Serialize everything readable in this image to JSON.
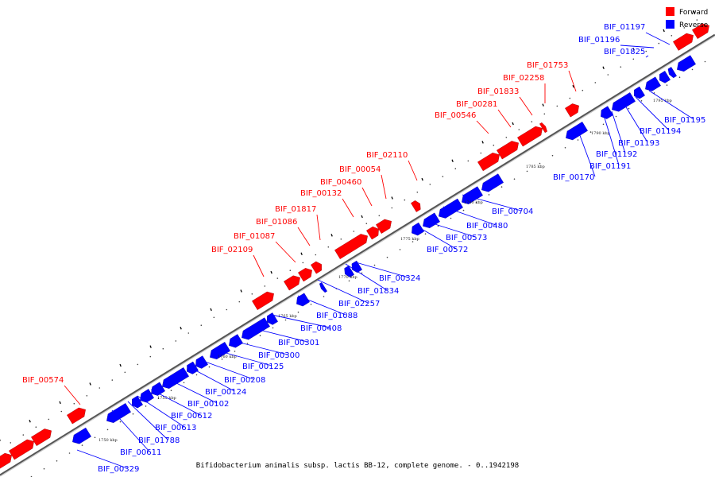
{
  "colors": {
    "forward": "#ff0000",
    "reverse": "#0000ff",
    "backbone": "#777777"
  },
  "legend": {
    "forward_label": "Forward",
    "reverse_label": "Reverse"
  },
  "caption": "Bifidobacterium animalis subsp. lactis BB-12, complete genome. - 0..1942198",
  "scale_labels": [
    "1750 kbp",
    "1755 kbp",
    "1760 kbp",
    "1765 kbp",
    "1770 kbp",
    "1775 kbp",
    "1780 kbp",
    "1785 kbp",
    "1790 kbp",
    "1795 kbp"
  ],
  "forward_genes": [
    "BIF_00574",
    "BIF_02109",
    "BIF_01087",
    "BIF_01086",
    "BIF_01817",
    "BIF_00132",
    "BIF_00460",
    "BIF_00054",
    "BIF_02110",
    "BIF_00546",
    "BIF_00281",
    "BIF_01833",
    "BIF_02258",
    "BIF_01753"
  ],
  "reverse_genes": [
    "BIF_00329",
    "BIF_00611",
    "BIF_01788",
    "BIF_00613",
    "BIF_00612",
    "BIF_00102",
    "BIF_00124",
    "BIF_00208",
    "BIF_00125",
    "BIF_00300",
    "BIF_00301",
    "BIF_00408",
    "BIF_01088",
    "BIF_02257",
    "BIF_01834",
    "BIF_00324",
    "BIF_00572",
    "BIF_00573",
    "BIF_00480",
    "BIF_00704",
    "BIF_00170",
    "BIF_01191",
    "BIF_01192",
    "BIF_01193",
    "BIF_01194",
    "BIF_01195",
    "BIF_01825",
    "BIF_01196",
    "BIF_01197"
  ]
}
